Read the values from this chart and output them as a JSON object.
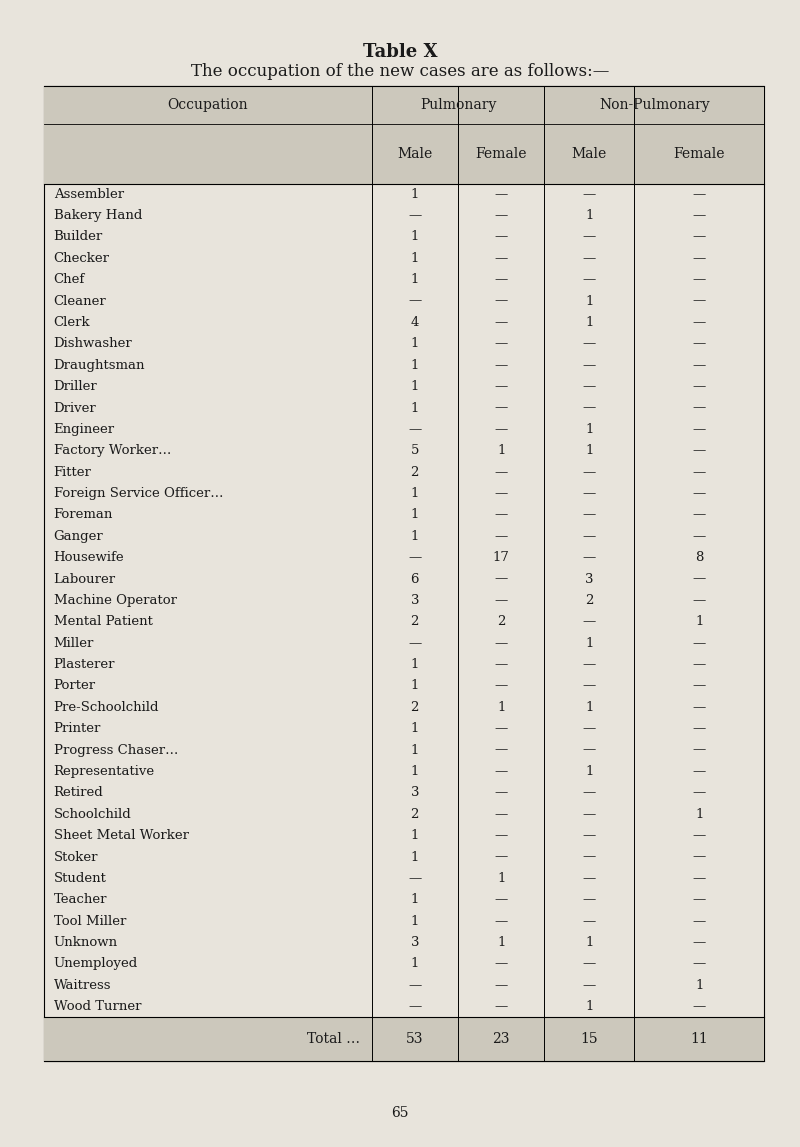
{
  "title": "Table X",
  "subtitle": "The occupation of the new cases are as follows:—",
  "col_headers": [
    "Occupation",
    "Pulmonary",
    "Non-Pulmonary"
  ],
  "sub_headers": [
    "Male",
    "Female",
    "Male",
    "Female"
  ],
  "rows": [
    [
      "Assembler",
      "1",
      "—",
      "—",
      "—"
    ],
    [
      "Bakery Hand",
      "—",
      "—",
      "1",
      "—"
    ],
    [
      "Builder",
      "1",
      "—",
      "—",
      "—"
    ],
    [
      "Checker",
      "1",
      "—",
      "—",
      "—"
    ],
    [
      "Chef",
      "1",
      "—",
      "—",
      "—"
    ],
    [
      "Cleaner",
      "—",
      "—",
      "1",
      "—"
    ],
    [
      "Clerk",
      "4",
      "—",
      "1",
      "—"
    ],
    [
      "Dishwasher",
      "1",
      "—",
      "—",
      "—"
    ],
    [
      "Draughtsman",
      "1",
      "—",
      "—",
      "—"
    ],
    [
      "Driller",
      "1",
      "—",
      "—",
      "—"
    ],
    [
      "Driver",
      "1",
      "—",
      "—",
      "—"
    ],
    [
      "Engineer",
      "—",
      "—",
      "1",
      "—"
    ],
    [
      "Factory Worker…",
      "5",
      "1",
      "1",
      "—"
    ],
    [
      "Fitter",
      "2",
      "—",
      "—",
      "—"
    ],
    [
      "Foreign Service Officer…",
      "1",
      "—",
      "—",
      "—"
    ],
    [
      "Foreman",
      "1",
      "—",
      "—",
      "—"
    ],
    [
      "Ganger",
      "1",
      "—",
      "—",
      "—"
    ],
    [
      "Housewife",
      "—",
      "17",
      "—",
      "8"
    ],
    [
      "Labourer",
      "6",
      "—",
      "3",
      "—"
    ],
    [
      "Machine Operator",
      "3",
      "—",
      "2",
      "—"
    ],
    [
      "Mental Patient",
      "2",
      "2",
      "—",
      "1"
    ],
    [
      "Miller",
      "—",
      "—",
      "1",
      "—"
    ],
    [
      "Plasterer",
      "1",
      "—",
      "—",
      "—"
    ],
    [
      "Porter",
      "1",
      "—",
      "—",
      "—"
    ],
    [
      "Pre-Schoolchild",
      "2",
      "1",
      "1",
      "—"
    ],
    [
      "Printer",
      "1",
      "—",
      "—",
      "—"
    ],
    [
      "Progress Chaser…",
      "1",
      "—",
      "—",
      "—"
    ],
    [
      "Representative",
      "1",
      "—",
      "1",
      "—"
    ],
    [
      "Retired",
      "3",
      "—",
      "—",
      "—"
    ],
    [
      "Schoolchild",
      "2",
      "—",
      "—",
      "1"
    ],
    [
      "Sheet Metal Worker",
      "1",
      "—",
      "—",
      "—"
    ],
    [
      "Stoker",
      "1",
      "—",
      "—",
      "—"
    ],
    [
      "Student",
      "—",
      "1",
      "—",
      "—"
    ],
    [
      "Teacher",
      "1",
      "—",
      "—",
      "—"
    ],
    [
      "Tool Miller",
      "1",
      "—",
      "—",
      "—"
    ],
    [
      "Unknown",
      "3",
      "1",
      "1",
      "—"
    ],
    [
      "Unemployed",
      "1",
      "—",
      "—",
      "—"
    ],
    [
      "Waitress",
      "—",
      "—",
      "—",
      "1"
    ],
    [
      "Wood Turner",
      "—",
      "—",
      "1",
      "—"
    ]
  ],
  "totals": [
    "Total …",
    "53",
    "23",
    "15",
    "11"
  ],
  "page_number": "65",
  "bg_color": "#e8e4dc",
  "table_bg": "#d6d0c4",
  "text_color": "#1a1a1a",
  "font_size_title": 13,
  "font_size_subtitle": 12,
  "font_size_table": 9.5,
  "font_size_header": 10,
  "font_size_page": 10
}
